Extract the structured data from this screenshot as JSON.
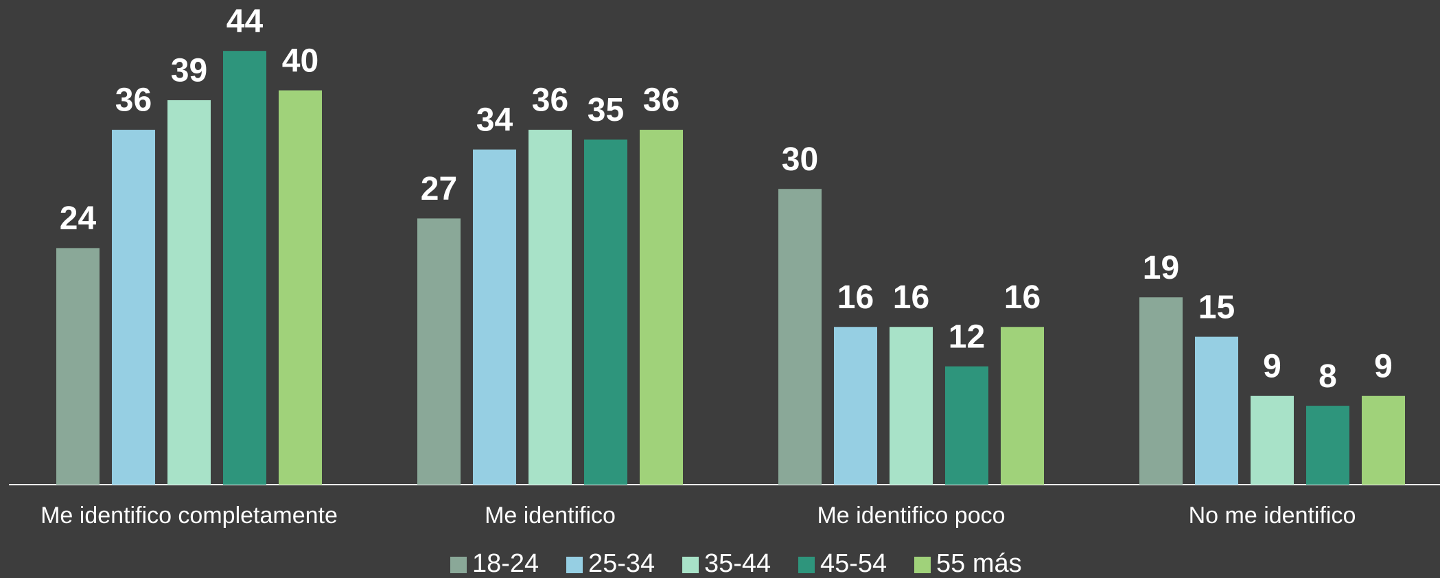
{
  "chart_data": {
    "type": "bar",
    "categories": [
      "Me identifico completamente",
      "Me identifico",
      "Me identifico poco",
      "No me identifico"
    ],
    "series": [
      {
        "name": "18-24",
        "color": "#8aa898",
        "values": [
          24,
          27,
          30,
          19
        ]
      },
      {
        "name": "25-34",
        "color": "#96cfe3",
        "values": [
          36,
          34,
          16,
          15
        ]
      },
      {
        "name": "35-44",
        "color": "#a8e2c8",
        "values": [
          39,
          36,
          16,
          9
        ]
      },
      {
        "name": "45-54",
        "color": "#2e957c",
        "values": [
          44,
          35,
          12,
          8
        ]
      },
      {
        "name": "55 más",
        "color": "#a0d27a",
        "values": [
          40,
          36,
          16,
          9
        ]
      }
    ],
    "legend": "bottom"
  }
}
